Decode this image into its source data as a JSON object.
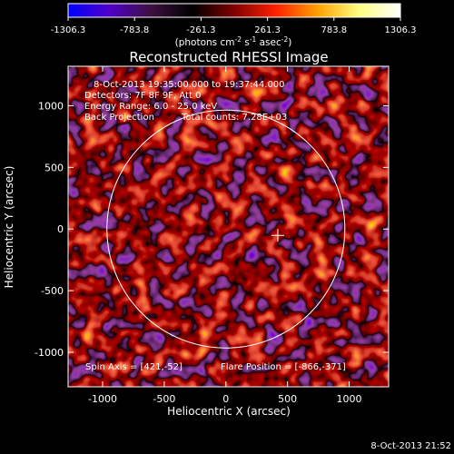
{
  "colorbar": {
    "ticks": [
      "-1306.3",
      "-783.8",
      "-261.3",
      "261.3",
      "783.8",
      "1306.3"
    ],
    "units_prefix": "(photons cm",
    "units_exp1": "-2",
    "units_mid": " s",
    "units_exp2": "-1",
    "units_suffix": " asec",
    "units_exp3": "-2",
    "units_close": ")"
  },
  "chart_data": {
    "type": "heatmap",
    "title": "Reconstructed RHESSI Image",
    "xlabel": "Heliocentric X (arcsec)",
    "ylabel": "Heliocentric Y (arcsec)",
    "xlim": [
      -1280,
      1320
    ],
    "ylim": [
      -1280,
      1320
    ],
    "x_ticks": [
      "-1000",
      "-500",
      "0",
      "500",
      "1000"
    ],
    "y_ticks": [
      "1000",
      "500",
      "0",
      "-500",
      "-1000"
    ],
    "x_tick_values": [
      -1000,
      -500,
      0,
      500,
      1000
    ],
    "y_tick_values": [
      1000,
      500,
      0,
      -500,
      -1000
    ],
    "color_range": [
      -1306.3,
      1306.3
    ],
    "colormap": [
      "#0000ff",
      "#5000c8",
      "#3c1040",
      "#000000",
      "#800000",
      "#ff2000",
      "#ffa000",
      "#ffff80",
      "#ffffff"
    ],
    "solar_limb": {
      "center": [
        0,
        0
      ],
      "radius": 965
    },
    "flare_marker": [
      421,
      -52
    ],
    "annotations": {
      "line1": "8-Oct-2013 19:35:00.000 to 19:37:44.000",
      "line2": "Detectors: 7F 8F 9F, Att 0",
      "line3": "Energy Range: 6.0 - 25.0 keV",
      "line4a": "Back Projection",
      "line4b": "Total counts: 7.28E+03",
      "spin_axis": "Spin Axis = [421,-52]",
      "flare_position": "Flare Position = [-866,-371]"
    }
  },
  "footer": {
    "timestamp": "8-Oct-2013 21:52"
  }
}
